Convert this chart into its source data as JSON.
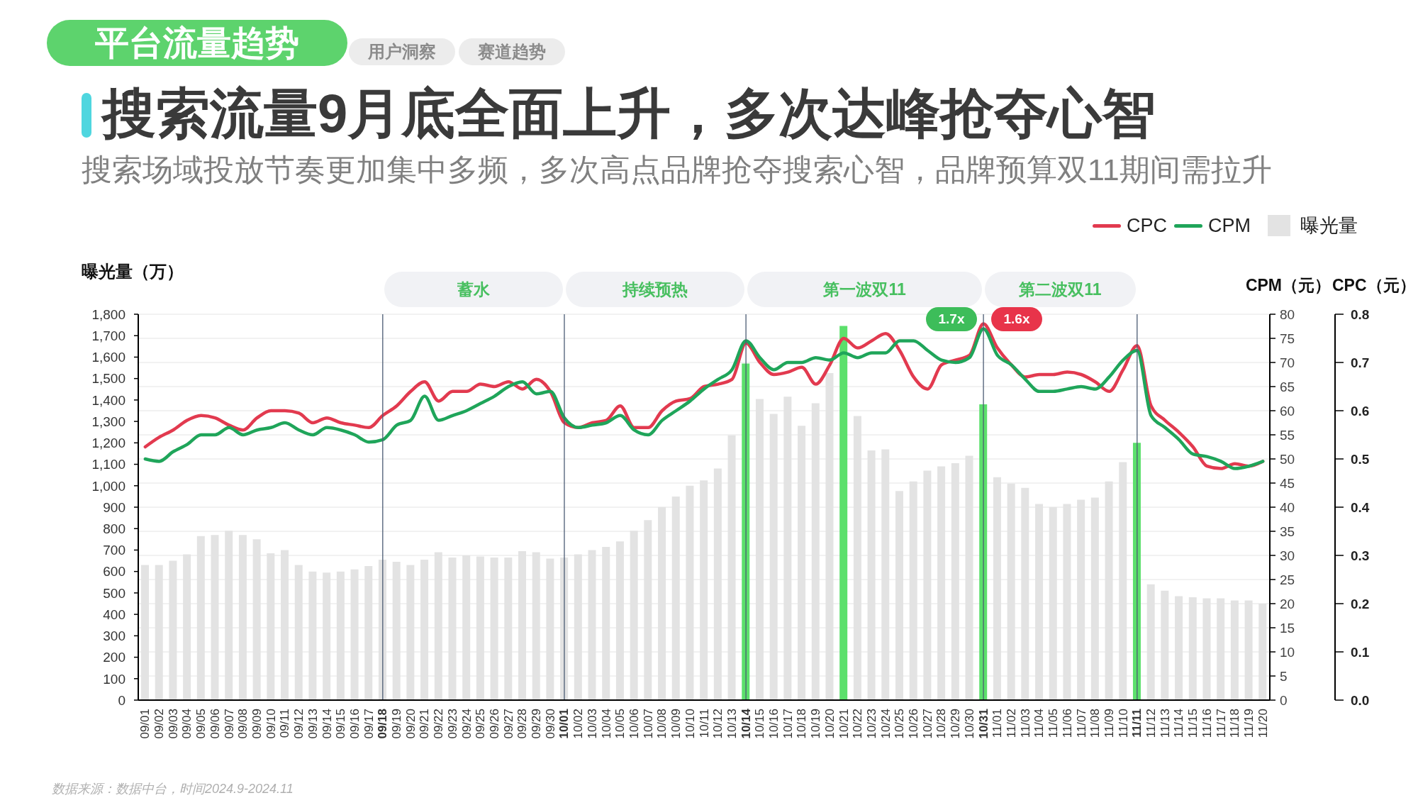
{
  "chart_data": {
    "type": "bar",
    "title": "搜索流量9月底全面上升，多次达峰抢夺心智",
    "subtitle": "搜索场域投放节奏更加集中多频，多次高点品牌抢夺搜索心智，品牌预算双11期间需拉升",
    "ylabel": "曝光量（万）",
    "y2label": "CPM（元）",
    "y3label": "CPC（元）",
    "categories": [
      "09/01",
      "09/02",
      "09/03",
      "09/04",
      "09/05",
      "09/06",
      "09/07",
      "09/08",
      "09/09",
      "09/10",
      "09/11",
      "09/12",
      "09/13",
      "09/14",
      "09/15",
      "09/16",
      "09/17",
      "09/18",
      "09/19",
      "09/20",
      "09/21",
      "09/22",
      "09/23",
      "09/24",
      "09/25",
      "09/26",
      "09/27",
      "09/28",
      "09/29",
      "09/30",
      "10/01",
      "10/02",
      "10/03",
      "10/04",
      "10/05",
      "10/06",
      "10/07",
      "10/08",
      "10/09",
      "10/10",
      "10/11",
      "10/12",
      "10/13",
      "10/14",
      "10/15",
      "10/16",
      "10/17",
      "10/18",
      "10/19",
      "10/20",
      "10/21",
      "10/22",
      "10/23",
      "10/24",
      "10/25",
      "10/26",
      "10/27",
      "10/28",
      "10/29",
      "10/30",
      "10/31",
      "11/01",
      "11/02",
      "11/03",
      "11/04",
      "11/05",
      "11/06",
      "11/07",
      "11/08",
      "11/09",
      "11/10",
      "11/11",
      "11/12",
      "11/13",
      "11/14",
      "11/15",
      "11/16",
      "11/17",
      "11/18",
      "11/19",
      "11/20"
    ],
    "series": [
      {
        "name": "CPC",
        "type": "line",
        "axis": "y3",
        "color": "#e23a4f",
        "values": [
          0.525,
          0.545,
          0.56,
          0.58,
          0.59,
          0.585,
          0.57,
          0.56,
          0.585,
          0.6,
          0.6,
          0.595,
          0.575,
          0.585,
          0.575,
          0.57,
          0.565,
          0.59,
          0.61,
          0.64,
          0.66,
          0.62,
          0.64,
          0.64,
          0.655,
          0.65,
          0.66,
          0.645,
          0.665,
          0.64,
          0.575,
          0.565,
          0.575,
          0.58,
          0.61,
          0.565,
          0.565,
          0.6,
          0.62,
          0.625,
          0.65,
          0.655,
          0.665,
          0.74,
          0.7,
          0.675,
          0.68,
          0.69,
          0.655,
          0.695,
          0.75,
          0.73,
          0.745,
          0.76,
          0.725,
          0.67,
          0.645,
          0.695,
          0.705,
          0.715,
          0.78,
          0.73,
          0.695,
          0.67,
          0.675,
          0.675,
          0.68,
          0.675,
          0.66,
          0.64,
          0.685,
          0.735,
          0.61,
          0.58,
          0.555,
          0.525,
          0.485,
          0.48,
          0.49,
          0.485,
          0.495
        ]
      },
      {
        "name": "CPM",
        "type": "line",
        "axis": "y2",
        "color": "#1fa55a",
        "values": [
          50,
          49.5,
          51.5,
          53,
          55,
          55,
          56.5,
          55,
          56,
          56.5,
          57.5,
          56,
          55,
          56.5,
          56,
          55,
          53.5,
          54,
          57,
          58,
          63,
          58,
          59,
          60,
          61.5,
          63,
          65,
          66,
          63.5,
          64,
          58.5,
          56.5,
          57,
          57.5,
          59,
          56,
          55,
          58,
          60,
          62,
          64.5,
          66.5,
          68.5,
          74.5,
          71,
          68.5,
          70,
          70,
          71,
          70.5,
          72,
          71,
          72,
          72,
          74.5,
          74.5,
          72.5,
          70.5,
          70,
          71,
          77,
          71.5,
          69.5,
          66.5,
          64,
          64,
          64.5,
          65,
          64.5,
          67,
          70.5,
          72.5,
          59,
          56.5,
          54,
          51,
          50.5,
          49.5,
          48,
          48.5,
          49.5
        ]
      },
      {
        "name": "曝光量",
        "axis": "y",
        "color": "#e3e3e3",
        "values": [
          630,
          630,
          650,
          680,
          765,
          770,
          790,
          770,
          750,
          685,
          700,
          630,
          600,
          595,
          600,
          610,
          625,
          655,
          645,
          630,
          655,
          690,
          665,
          675,
          670,
          665,
          665,
          695,
          690,
          660,
          665,
          680,
          700,
          715,
          740,
          790,
          840,
          900,
          950,
          1000,
          1025,
          1080,
          1235,
          1570,
          1405,
          1335,
          1415,
          1280,
          1385,
          1525,
          1745,
          1325,
          1165,
          1170,
          975,
          1020,
          1070,
          1090,
          1105,
          1140,
          1380,
          1040,
          1010,
          990,
          915,
          900,
          915,
          935,
          945,
          1020,
          1110,
          1200,
          540,
          510,
          485,
          480,
          475,
          475,
          465,
          465,
          450
        ],
        "colors": [
          "#e3e3e3",
          "#e3e3e3",
          "#e3e3e3",
          "#e3e3e3",
          "#e3e3e3",
          "#e3e3e3",
          "#e3e3e3",
          "#e3e3e3",
          "#e3e3e3",
          "#e3e3e3",
          "#e3e3e3",
          "#e3e3e3",
          "#e3e3e3",
          "#e3e3e3",
          "#e3e3e3",
          "#e3e3e3",
          "#e3e3e3",
          "#e3e3e3",
          "#e3e3e3",
          "#e3e3e3",
          "#e3e3e3",
          "#e3e3e3",
          "#e3e3e3",
          "#e3e3e3",
          "#e3e3e3",
          "#e3e3e3",
          "#e3e3e3",
          "#e3e3e3",
          "#e3e3e3",
          "#e3e3e3",
          "#e3e3e3",
          "#e3e3e3",
          "#e3e3e3",
          "#e3e3e3",
          "#e3e3e3",
          "#e3e3e3",
          "#e3e3e3",
          "#e3e3e3",
          "#e3e3e3",
          "#e3e3e3",
          "#e3e3e3",
          "#e3e3e3",
          "#e3e3e3",
          "#5ce06c",
          "#e3e3e3",
          "#e3e3e3",
          "#e3e3e3",
          "#e3e3e3",
          "#e3e3e3",
          "#e3e3e3",
          "#5ce06c",
          "#e3e3e3",
          "#e3e3e3",
          "#e3e3e3",
          "#e3e3e3",
          "#e3e3e3",
          "#e3e3e3",
          "#e3e3e3",
          "#e3e3e3",
          "#e3e3e3",
          "#5ce06c",
          "#e3e3e3",
          "#e3e3e3",
          "#e3e3e3",
          "#e3e3e3",
          "#e3e3e3",
          "#e3e3e3",
          "#e3e3e3",
          "#e3e3e3",
          "#e3e3e3",
          "#e3e3e3",
          "#5ce06c",
          "#e3e3e3",
          "#e3e3e3",
          "#e3e3e3",
          "#e3e3e3",
          "#e3e3e3",
          "#e3e3e3",
          "#e3e3e3",
          "#e3e3e3",
          "#e3e3e3"
        ]
      }
    ],
    "ylim": [
      0,
      1800
    ],
    "yticks": [
      0,
      100,
      200,
      300,
      400,
      500,
      600,
      700,
      800,
      900,
      {
        "value": 1000,
        "label": "1,000"
      },
      {
        "value": 1100,
        "label": "1,100"
      },
      {
        "value": 1200,
        "label": "1,200"
      },
      {
        "value": 1300,
        "label": "1,300"
      },
      {
        "value": 1400,
        "label": "1,400"
      },
      {
        "value": 1500,
        "label": "1,500"
      },
      {
        "value": 1600,
        "label": "1,600"
      },
      {
        "value": 1700,
        "label": "1,700"
      },
      {
        "value": 1800,
        "label": "1,800"
      }
    ],
    "y2lim": [
      0,
      80
    ],
    "y2ticks": [
      0,
      5,
      10,
      15,
      20,
      25,
      30,
      35,
      40,
      45,
      50,
      55,
      60,
      65,
      70,
      75,
      80
    ],
    "y3lim": [
      0,
      0.8
    ],
    "y3ticks": [
      {
        "value": 0,
        "label": "0.0"
      },
      0.1,
      0.2,
      0.3,
      0.4,
      0.5,
      0.6,
      0.7,
      0.8
    ],
    "grid": "y2",
    "legend": "top right",
    "ref_lines": [
      {
        "axis": "x",
        "value": "09/18",
        "color": "#4b5b73"
      },
      {
        "axis": "x",
        "value": "10/01",
        "color": "#4b5b73"
      },
      {
        "axis": "x",
        "value": "10/14",
        "color": "#4b5b73"
      },
      {
        "axis": "x",
        "value": "10/31",
        "color": "#4b5b73"
      },
      {
        "axis": "x",
        "value": "11/11",
        "color": "#4b5b73"
      }
    ],
    "annotations": [
      "平台流量趋势",
      "用户洞察",
      "赛道趋势",
      "蓄水",
      "持续预热",
      "第一波双11",
      "第二波双11",
      "1.7x",
      "1.6x",
      "数据来源：数据中台，时间2024.9-2024.11"
    ]
  }
}
